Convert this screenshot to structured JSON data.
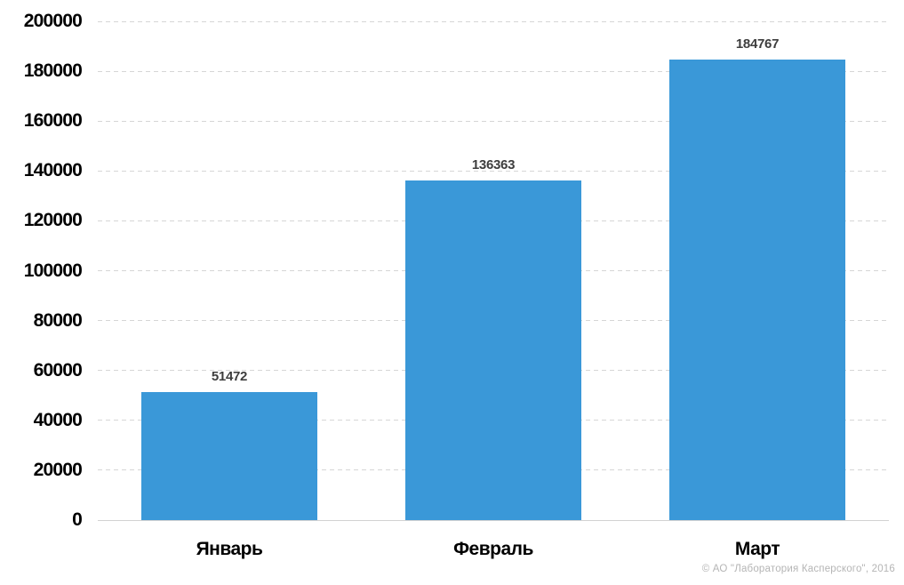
{
  "chart_data": {
    "type": "bar",
    "categories": [
      "Январь",
      "Февраль",
      "Март"
    ],
    "values": [
      51472,
      136363,
      184767
    ],
    "title": "",
    "xlabel": "",
    "ylabel": "",
    "ylim": [
      0,
      200000
    ],
    "ytick_step": 20000,
    "ytick_labels": [
      "0",
      "20000",
      "40000",
      "60000",
      "80000",
      "100000",
      "120000",
      "140000",
      "160000",
      "180000",
      "200000"
    ],
    "grid": "horizontal-dashed",
    "legend_position": "none",
    "bar_labels_shown": true
  },
  "footer": {
    "copyright": "© АО \"Лаборатория Касперского\", 2016"
  },
  "colors": {
    "background": "#ffffff",
    "bar": "#3a98d8",
    "gridline": "#d6d6d6",
    "baseline": "#d2d2d2",
    "axis_tick_label": "#000000",
    "bar_value_label": "#3d3d3d",
    "copyright": "#b5b5b5"
  }
}
